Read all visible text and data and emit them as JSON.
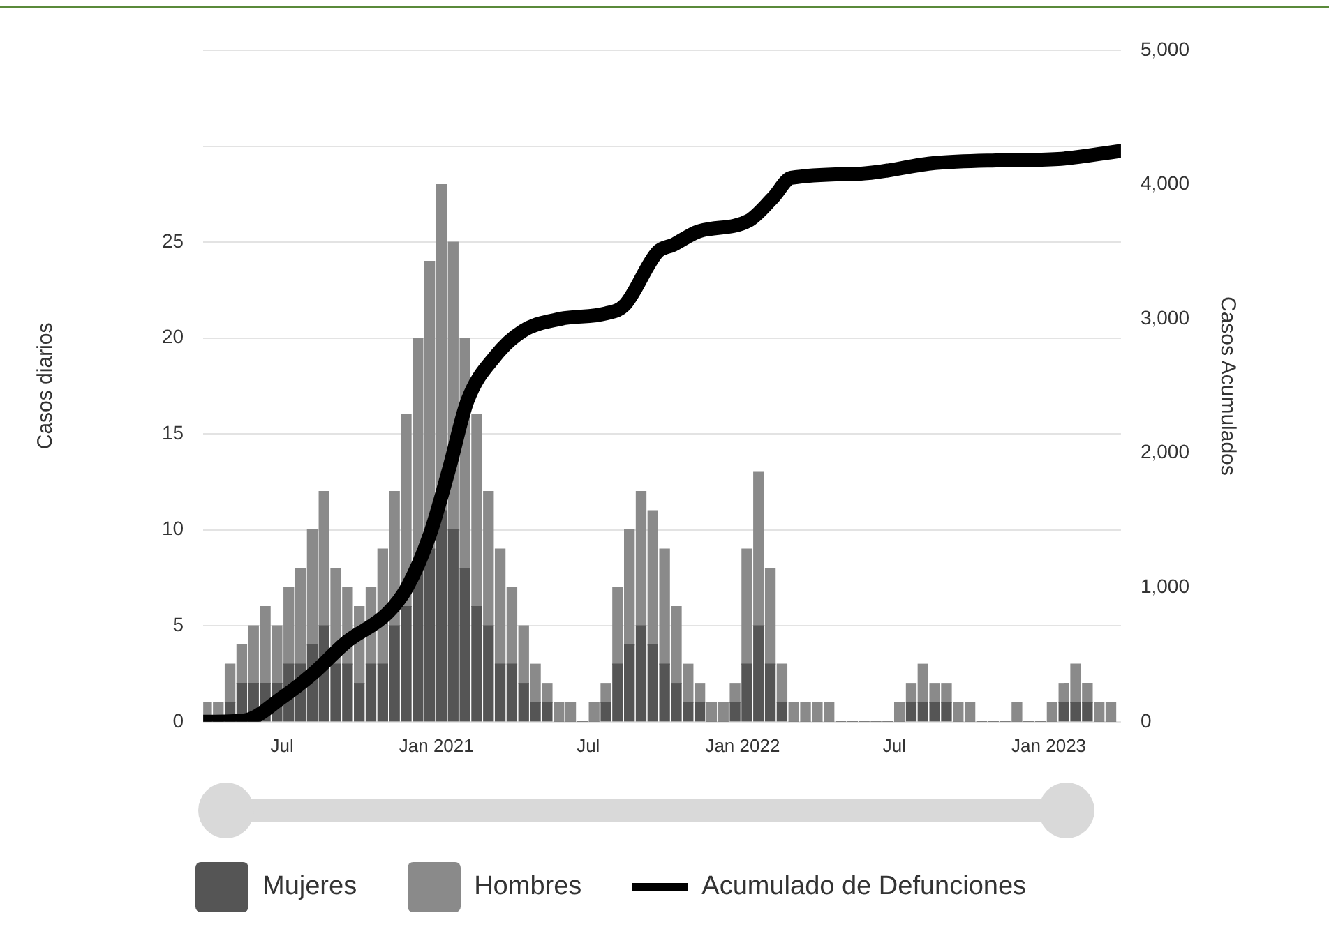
{
  "chart_data": {
    "type": "bar",
    "stacked": true,
    "ylabel": "Casos diarios",
    "y2label": "Casos Acumulados",
    "x": [
      "2020-04-02",
      "2020-04-16",
      "2020-04-30",
      "2020-05-14",
      "2020-05-28",
      "2020-06-11",
      "2020-06-25",
      "2020-07-09",
      "2020-07-23",
      "2020-08-06",
      "2020-08-20",
      "2020-09-03",
      "2020-09-17",
      "2020-10-01",
      "2020-10-15",
      "2020-10-29",
      "2020-11-12",
      "2020-11-26",
      "2020-12-10",
      "2020-12-24",
      "2021-01-07",
      "2021-01-21",
      "2021-02-04",
      "2021-02-18",
      "2021-03-04",
      "2021-03-18",
      "2021-04-01",
      "2021-04-15",
      "2021-04-29",
      "2021-05-13",
      "2021-05-27",
      "2021-06-10",
      "2021-06-24",
      "2021-07-08",
      "2021-07-22",
      "2021-08-05",
      "2021-08-19",
      "2021-09-02",
      "2021-09-16",
      "2021-09-30",
      "2021-10-14",
      "2021-10-28",
      "2021-11-11",
      "2021-11-25",
      "2021-12-09",
      "2021-12-23",
      "2022-01-06",
      "2022-01-20",
      "2022-02-03",
      "2022-02-17",
      "2022-03-03",
      "2022-03-17",
      "2022-03-31",
      "2022-04-14",
      "2022-04-28",
      "2022-05-12",
      "2022-05-26",
      "2022-06-09",
      "2022-06-23",
      "2022-07-07",
      "2022-07-21",
      "2022-08-04",
      "2022-08-18",
      "2022-09-01",
      "2022-09-15",
      "2022-09-29",
      "2022-10-13",
      "2022-10-27",
      "2022-11-10",
      "2022-11-24",
      "2022-12-08",
      "2022-12-22",
      "2023-01-05",
      "2023-01-19",
      "2023-02-02",
      "2023-02-16",
      "2023-03-02",
      "2023-03-16"
    ],
    "xlim": [
      "2020-03-29",
      "2023-03-28"
    ],
    "xticks": [
      {
        "value": "2020-07-01",
        "label": "Jul"
      },
      {
        "value": "2021-01-01",
        "label": "Jan 2021"
      },
      {
        "value": "2021-07-01",
        "label": "Jul"
      },
      {
        "value": "2022-01-01",
        "label": "Jan 2022"
      },
      {
        "value": "2022-07-01",
        "label": "Jul"
      },
      {
        "value": "2023-01-01",
        "label": "Jan 2023"
      }
    ],
    "ylim": [
      0,
      35
    ],
    "yticks": [
      0,
      5,
      10,
      15,
      20,
      25,
      {
        "value": 30,
        "label": null
      },
      {
        "value": 35,
        "label": null
      }
    ],
    "y2lim": [
      0,
      5000
    ],
    "y2ticks": [
      0,
      {
        "value": 1000,
        "label": "1,000"
      },
      {
        "value": 2000,
        "label": "2,000"
      },
      {
        "value": 3000,
        "label": "3,000"
      },
      {
        "value": 4000,
        "label": "4,000"
      },
      {
        "value": 5000,
        "label": "5,000"
      }
    ],
    "grid": "y",
    "legend": "bottom",
    "series": [
      {
        "name": "Mujeres",
        "color": "#555555",
        "values": [
          0,
          0,
          1,
          2,
          2,
          2,
          2,
          3,
          3,
          4,
          5,
          3,
          3,
          2,
          3,
          3,
          5,
          6,
          8,
          9,
          11,
          10,
          8,
          6,
          5,
          3,
          3,
          2,
          1,
          1,
          0,
          0,
          0,
          0,
          1,
          3,
          4,
          5,
          4,
          3,
          2,
          1,
          1,
          0,
          0,
          1,
          3,
          5,
          3,
          1,
          0,
          0,
          0,
          0,
          0,
          0,
          0,
          0,
          0,
          0,
          1,
          1,
          1,
          1,
          0,
          0,
          0,
          0,
          0,
          0,
          0,
          0,
          0,
          1,
          1,
          1,
          0,
          0
        ]
      },
      {
        "name": "Hombres",
        "color": "#8a8a8a",
        "values": [
          1,
          1,
          2,
          2,
          3,
          4,
          3,
          4,
          5,
          6,
          7,
          5,
          4,
          4,
          4,
          6,
          7,
          10,
          12,
          15,
          17,
          15,
          12,
          10,
          7,
          6,
          4,
          3,
          2,
          1,
          1,
          1,
          0,
          1,
          1,
          4,
          6,
          7,
          7,
          6,
          4,
          2,
          1,
          1,
          1,
          1,
          6,
          8,
          5,
          2,
          1,
          1,
          1,
          1,
          0,
          0,
          0,
          0,
          0,
          1,
          1,
          2,
          1,
          1,
          1,
          1,
          0,
          0,
          0,
          1,
          0,
          0,
          1,
          1,
          2,
          1,
          1,
          1
        ]
      },
      {
        "name": "Acumulado de Defunciones",
        "type": "line",
        "axis": "y2",
        "color": "#000000",
        "x": [
          "2020-03-29",
          "2020-05-17",
          "2020-07-01",
          "2020-08-08",
          "2020-09-15",
          "2020-11-04",
          "2020-11-27",
          "2020-12-24",
          "2021-01-16",
          "2021-02-07",
          "2021-03-12",
          "2021-04-14",
          "2021-05-29",
          "2021-07-22",
          "2021-08-13",
          "2021-09-22",
          "2021-10-10",
          "2021-11-09",
          "2022-01-08",
          "2022-02-06",
          "2022-02-28",
          "2022-05-20",
          "2022-08-18",
          "2022-10-30",
          "2023-01-12",
          "2023-03-28"
        ],
        "values": [
          0,
          10,
          180,
          365,
          590,
          810,
          1000,
          1390,
          1880,
          2390,
          2720,
          2910,
          3000,
          3040,
          3100,
          3500,
          3550,
          3650,
          3730,
          3900,
          4050,
          4080,
          4160,
          4180,
          4190,
          4250
        ]
      }
    ]
  }
}
